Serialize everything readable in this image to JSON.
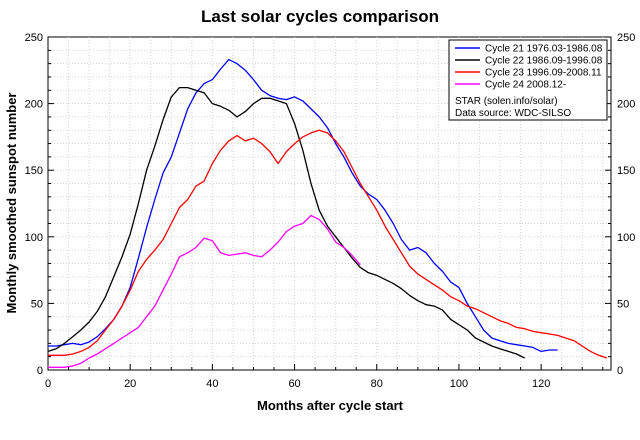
{
  "chart_data": {
    "type": "line",
    "title": "Last solar cycles comparison",
    "xlabel": "Months after cycle start",
    "ylabel": "Monthly smoothed sunspot number",
    "xlim": [
      0,
      137
    ],
    "ylim": [
      0,
      250
    ],
    "xticks": [
      0,
      20,
      40,
      60,
      80,
      100,
      120
    ],
    "yticks": [
      0,
      50,
      100,
      150,
      200,
      250
    ],
    "grid": true,
    "right_axis": true,
    "legend_position": "top-right",
    "legend_notes": [
      "STAR (solen.info/solar)",
      "Data source: WDC-SILSO"
    ],
    "series": [
      {
        "name": "Cycle 21 1976.03-1986.08",
        "color": "#0000ff",
        "x": [
          0,
          2,
          4,
          6,
          8,
          10,
          12,
          14,
          16,
          18,
          20,
          22,
          24,
          26,
          28,
          30,
          32,
          34,
          36,
          38,
          40,
          42,
          44,
          46,
          48,
          50,
          52,
          54,
          56,
          58,
          60,
          62,
          64,
          66,
          68,
          70,
          72,
          74,
          76,
          78,
          80,
          82,
          84,
          86,
          88,
          90,
          92,
          94,
          96,
          98,
          100,
          102,
          104,
          106,
          108,
          110,
          112,
          114,
          116,
          118,
          120,
          122,
          124
        ],
        "values": [
          18,
          18,
          19,
          20,
          19,
          21,
          25,
          31,
          38,
          48,
          62,
          84,
          107,
          128,
          148,
          160,
          178,
          196,
          208,
          215,
          218,
          226,
          233,
          230,
          225,
          218,
          210,
          206,
          204,
          203,
          205,
          202,
          196,
          190,
          182,
          170,
          160,
          148,
          138,
          132,
          128,
          120,
          110,
          98,
          90,
          92,
          88,
          80,
          74,
          66,
          62,
          50,
          40,
          30,
          24,
          22,
          20,
          19,
          18,
          17,
          14,
          15,
          15
        ]
      },
      {
        "name": "Cycle 22 1986.09-1996.08",
        "color": "#000000",
        "x": [
          0,
          2,
          4,
          6,
          8,
          10,
          12,
          14,
          16,
          18,
          20,
          22,
          24,
          26,
          28,
          30,
          32,
          34,
          36,
          38,
          40,
          42,
          44,
          46,
          48,
          50,
          52,
          54,
          56,
          58,
          60,
          62,
          64,
          66,
          68,
          70,
          72,
          74,
          76,
          78,
          80,
          82,
          84,
          86,
          88,
          90,
          92,
          94,
          96,
          98,
          100,
          102,
          104,
          106,
          108,
          110,
          112,
          114,
          116
        ],
        "values": [
          14,
          16,
          20,
          25,
          30,
          36,
          44,
          55,
          70,
          85,
          102,
          125,
          150,
          168,
          188,
          205,
          212,
          212,
          210,
          208,
          200,
          198,
          195,
          190,
          194,
          200,
          204,
          204,
          202,
          200,
          185,
          165,
          140,
          120,
          108,
          100,
          92,
          84,
          77,
          73,
          71,
          68,
          65,
          61,
          56,
          52,
          49,
          48,
          45,
          38,
          34,
          30,
          24,
          21,
          18,
          16,
          14,
          12,
          9
        ]
      },
      {
        "name": "Cycle 23 1996.09-2008.11",
        "color": "#ff0000",
        "x": [
          0,
          2,
          4,
          6,
          8,
          10,
          12,
          14,
          16,
          18,
          20,
          22,
          24,
          26,
          28,
          30,
          32,
          34,
          36,
          38,
          40,
          42,
          44,
          46,
          48,
          50,
          52,
          54,
          56,
          58,
          60,
          62,
          64,
          66,
          68,
          70,
          72,
          74,
          76,
          78,
          80,
          82,
          84,
          86,
          88,
          90,
          92,
          94,
          96,
          98,
          100,
          102,
          104,
          106,
          108,
          110,
          112,
          114,
          116,
          118,
          120,
          122,
          124,
          126,
          128,
          130,
          132,
          134,
          136
        ],
        "values": [
          11,
          11,
          11,
          12,
          14,
          17,
          22,
          30,
          38,
          48,
          60,
          74,
          83,
          90,
          98,
          110,
          122,
          128,
          138,
          142,
          155,
          165,
          172,
          176,
          172,
          174,
          170,
          164,
          155,
          164,
          170,
          175,
          178,
          180,
          178,
          172,
          164,
          152,
          140,
          130,
          120,
          108,
          98,
          88,
          78,
          72,
          68,
          64,
          60,
          55,
          52,
          48,
          46,
          43,
          40,
          37,
          35,
          32,
          31,
          29,
          28,
          27,
          26,
          24,
          22,
          18,
          14,
          11,
          9
        ]
      },
      {
        "name": "Cycle 24 2008.12-",
        "color": "#ff00ff",
        "x": [
          0,
          2,
          4,
          6,
          8,
          10,
          12,
          14,
          16,
          18,
          20,
          22,
          24,
          26,
          28,
          30,
          32,
          34,
          36,
          38,
          40,
          42,
          44,
          46,
          48,
          50,
          52,
          54,
          56,
          58,
          60,
          62,
          64,
          66,
          68,
          70,
          72,
          74,
          76
        ],
        "values": [
          2,
          2,
          2,
          3,
          5,
          9,
          12,
          16,
          20,
          24,
          28,
          32,
          40,
          48,
          60,
          72,
          85,
          88,
          92,
          99,
          97,
          88,
          86,
          87,
          88,
          86,
          85,
          90,
          96,
          104,
          108,
          110,
          116,
          113,
          106,
          96,
          92,
          86,
          79
        ]
      }
    ]
  }
}
